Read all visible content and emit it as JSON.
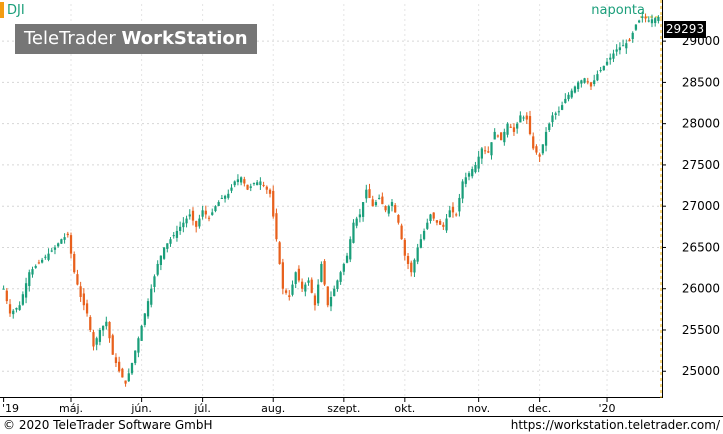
{
  "symbol": "DJI",
  "watermark": {
    "brand_regular": "TeleTrader ",
    "brand_bold": "WorkStation"
  },
  "period": "naponta",
  "last_price": "29293",
  "footer": {
    "copyright": "© 2020 TeleTrader Software GmbH",
    "url": "https://workstation.teletrader.com/"
  },
  "colors": {
    "up": "#1a9e7a",
    "down": "#e8601c",
    "symbol_marker": "#f39c12",
    "dashed_guide": "#f2b300"
  },
  "chart_data": {
    "type": "candlestick",
    "title": "DJI",
    "period": "naponta",
    "y_axis_side": "right",
    "ylim": [
      24700,
      29450
    ],
    "yticks": [
      25000,
      25500,
      26000,
      26500,
      27000,
      27500,
      28000,
      28500,
      29000
    ],
    "x_tick_labels": [
      "'19",
      "máj.",
      "jún.",
      "júl.",
      "aug.",
      "szept.",
      "okt.",
      "nov.",
      "dec.",
      "'20"
    ],
    "x_tick_positions": [
      0,
      21,
      43,
      62,
      84,
      106,
      125,
      148,
      167,
      188
    ],
    "n_sessions": 205,
    "grid": true,
    "last_price": 29293,
    "close_points": [
      [
        0,
        26000
      ],
      [
        2,
        25700
      ],
      [
        5,
        25800
      ],
      [
        8,
        26200
      ],
      [
        12,
        26350
      ],
      [
        16,
        26500
      ],
      [
        18,
        26600
      ],
      [
        20,
        26650
      ],
      [
        22,
        26200
      ],
      [
        24,
        25900
      ],
      [
        26,
        25700
      ],
      [
        28,
        25300
      ],
      [
        30,
        25500
      ],
      [
        32,
        25600
      ],
      [
        34,
        25200
      ],
      [
        36,
        25000
      ],
      [
        38,
        24850
      ],
      [
        40,
        25100
      ],
      [
        42,
        25400
      ],
      [
        44,
        25700
      ],
      [
        46,
        26000
      ],
      [
        48,
        26300
      ],
      [
        50,
        26500
      ],
      [
        52,
        26600
      ],
      [
        54,
        26700
      ],
      [
        56,
        26800
      ],
      [
        58,
        26900
      ],
      [
        60,
        26750
      ],
      [
        62,
        26950
      ],
      [
        64,
        26850
      ],
      [
        66,
        27000
      ],
      [
        68,
        27100
      ],
      [
        70,
        27150
      ],
      [
        72,
        27300
      ],
      [
        74,
        27350
      ],
      [
        76,
        27200
      ],
      [
        78,
        27280
      ],
      [
        80,
        27300
      ],
      [
        83,
        27150
      ],
      [
        85,
        26600
      ],
      [
        87,
        26000
      ],
      [
        89,
        25900
      ],
      [
        91,
        26200
      ],
      [
        93,
        26000
      ],
      [
        95,
        26100
      ],
      [
        97,
        25800
      ],
      [
        99,
        26300
      ],
      [
        101,
        25800
      ],
      [
        103,
        26000
      ],
      [
        105,
        26200
      ],
      [
        107,
        26400
      ],
      [
        109,
        26800
      ],
      [
        111,
        26900
      ],
      [
        113,
        27200
      ],
      [
        115,
        27000
      ],
      [
        117,
        27100
      ],
      [
        119,
        26950
      ],
      [
        121,
        27050
      ],
      [
        123,
        26800
      ],
      [
        125,
        26400
      ],
      [
        127,
        26200
      ],
      [
        129,
        26500
      ],
      [
        131,
        26700
      ],
      [
        133,
        26900
      ],
      [
        135,
        26800
      ],
      [
        137,
        26750
      ],
      [
        139,
        26950
      ],
      [
        141,
        26900
      ],
      [
        143,
        27300
      ],
      [
        145,
        27400
      ],
      [
        147,
        27500
      ],
      [
        149,
        27700
      ],
      [
        151,
        27650
      ],
      [
        153,
        27900
      ],
      [
        155,
        27800
      ],
      [
        157,
        28000
      ],
      [
        159,
        27900
      ],
      [
        161,
        28100
      ],
      [
        163,
        28050
      ],
      [
        165,
        27700
      ],
      [
        167,
        27600
      ],
      [
        169,
        27900
      ],
      [
        171,
        28100
      ],
      [
        173,
        28150
      ],
      [
        175,
        28300
      ],
      [
        177,
        28400
      ],
      [
        179,
        28500
      ],
      [
        181,
        28550
      ],
      [
        183,
        28450
      ],
      [
        185,
        28600
      ],
      [
        187,
        28700
      ],
      [
        189,
        28800
      ],
      [
        191,
        28900
      ],
      [
        193,
        28950
      ],
      [
        195,
        29000
      ],
      [
        197,
        29200
      ],
      [
        199,
        29300
      ],
      [
        201,
        29250
      ],
      [
        204,
        29293
      ]
    ]
  }
}
